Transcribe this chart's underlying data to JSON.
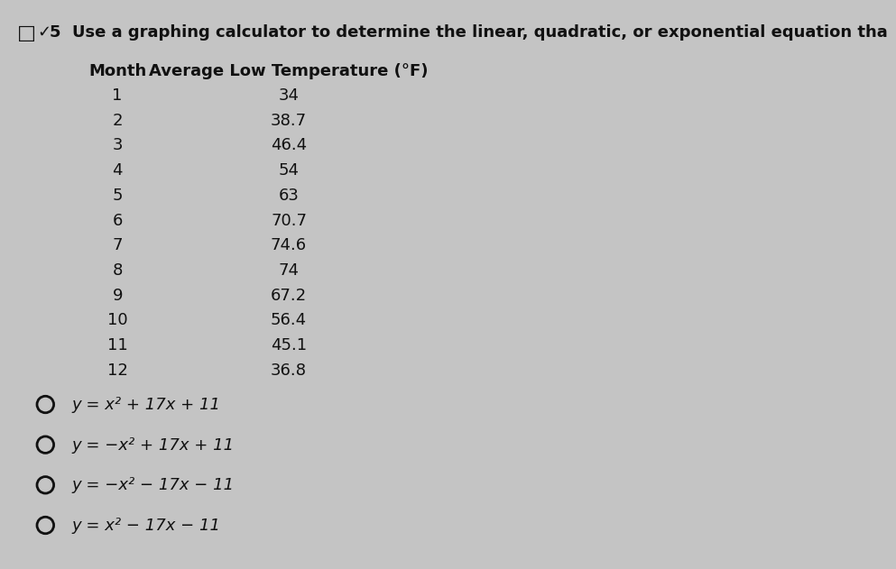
{
  "title": "5  Use a graphing calculator to determine the linear, quadratic, or exponential equation tha",
  "header_col1": "Month",
  "header_col2": "Average Low Temperature (°F)",
  "months": [
    1,
    2,
    3,
    4,
    5,
    6,
    7,
    8,
    9,
    10,
    11,
    12
  ],
  "temperatures": [
    34,
    38.7,
    46.4,
    54,
    63,
    70.7,
    74.6,
    74,
    67.2,
    56.4,
    45.1,
    36.8
  ],
  "options": [
    "y = x² + 17x + 11",
    "y = −x² + 17x + 11",
    "y = −x² − 17x − 11",
    "y = x² − 17x − 11"
  ],
  "background_color": "#c4c4c4",
  "text_color": "#111111",
  "title_fontsize": 13,
  "header_fontsize": 13,
  "data_fontsize": 13,
  "option_fontsize": 13
}
